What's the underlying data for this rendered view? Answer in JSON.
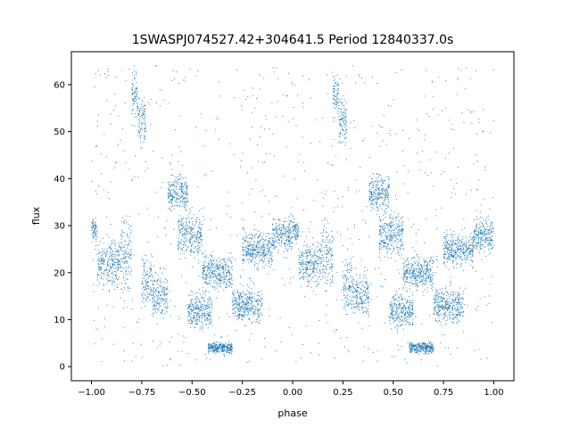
{
  "chart_data": {
    "type": "scatter",
    "title": "1SWASPJ074527.42+304641.5 Period 12840337.0s",
    "xlabel": "phase",
    "ylabel": "flux",
    "xlim": [
      -1.1,
      1.1
    ],
    "ylim": [
      -3,
      67
    ],
    "xticks": [
      -1.0,
      -0.75,
      -0.5,
      -0.25,
      0.0,
      0.25,
      0.5,
      0.75,
      1.0
    ],
    "xtick_labels": [
      "−1.00",
      "−0.75",
      "−0.50",
      "−0.25",
      "0.00",
      "0.25",
      "0.50",
      "0.75",
      "1.00"
    ],
    "yticks": [
      0,
      10,
      20,
      30,
      40,
      50,
      60
    ],
    "ytick_labels": [
      "0",
      "10",
      "20",
      "30",
      "40",
      "50",
      "60"
    ],
    "grid": false,
    "legend": "none",
    "marker_color": "#1f77b4",
    "phase_range": [
      -1.0,
      1.0
    ],
    "folded_period": 1.0,
    "series": [
      {
        "values_description": "phase-folded light curve, pattern repeats with period 1.0",
        "segments": [
          {
            "x": [
              -1.0,
              -0.97
            ],
            "y_center": 29,
            "y_spread": 2
          },
          {
            "x": [
              -0.97,
              -0.86
            ],
            "y_center": 22,
            "y_spread": 4
          },
          {
            "x": [
              -0.86,
              -0.8
            ],
            "y_center": 24,
            "y_spread": 6
          },
          {
            "x": [
              -0.8,
              -0.77
            ],
            "y_center": 58,
            "y_spread": 4
          },
          {
            "x": [
              -0.77,
              -0.73
            ],
            "y_center": 52,
            "y_spread": 4
          },
          {
            "x": [
              -0.75,
              -0.7
            ],
            "y_center": 18,
            "y_spread": 5
          },
          {
            "x": [
              -0.7,
              -0.62
            ],
            "y_center": 15,
            "y_spread": 4
          },
          {
            "x": [
              -0.62,
              -0.52
            ],
            "y_center": 37,
            "y_spread": 3
          },
          {
            "x": [
              -0.57,
              -0.45
            ],
            "y_center": 28,
            "y_spread": 4
          },
          {
            "x": [
              -0.52,
              -0.4
            ],
            "y_center": 12,
            "y_spread": 3
          },
          {
            "x": [
              -0.45,
              -0.3
            ],
            "y_center": 20,
            "y_spread": 3
          },
          {
            "x": [
              -0.42,
              -0.3
            ],
            "y_center": 4,
            "y_spread": 1
          },
          {
            "x": [
              -0.3,
              -0.15
            ],
            "y_center": 13,
            "y_spread": 3
          },
          {
            "x": [
              -0.25,
              -0.1
            ],
            "y_center": 25,
            "y_spread": 3
          },
          {
            "x": [
              -0.1,
              0.0
            ],
            "y_center": 28,
            "y_spread": 3
          }
        ]
      }
    ]
  }
}
